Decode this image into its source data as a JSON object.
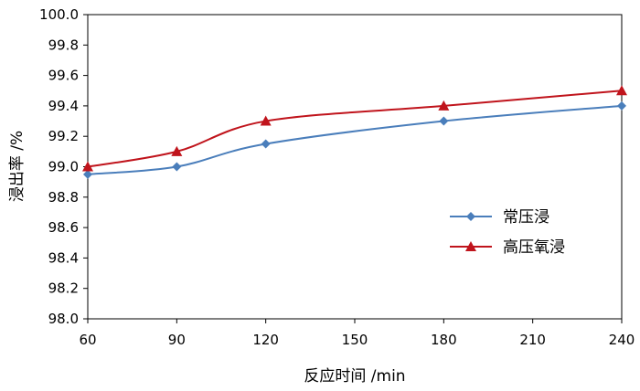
{
  "chart_data": {
    "type": "line",
    "xlabel": "反应时间 /min",
    "ylabel": "浸出率 /%",
    "xlim": [
      60,
      240
    ],
    "ylim": [
      98.0,
      100.0
    ],
    "xticks": [
      "60",
      "90",
      "120",
      "150",
      "180",
      "210",
      "240"
    ],
    "yticks": [
      "98.0",
      "98.2",
      "98.4",
      "98.6",
      "98.8",
      "99.0",
      "99.2",
      "99.4",
      "99.6",
      "99.8",
      "100.0"
    ],
    "grid": false,
    "legend_position": "center-right",
    "series": [
      {
        "name": "常压浸",
        "color": "#4a7ebb",
        "marker": "diamond",
        "x": [
          60,
          90,
          120,
          180,
          240
        ],
        "y": [
          98.95,
          99.0,
          99.15,
          99.3,
          99.4
        ]
      },
      {
        "name": "高压氧浸",
        "color": "#c0141c",
        "marker": "triangle",
        "x": [
          60,
          90,
          120,
          180,
          240
        ],
        "y": [
          99.0,
          99.1,
          99.3,
          99.4,
          99.5
        ]
      }
    ]
  }
}
